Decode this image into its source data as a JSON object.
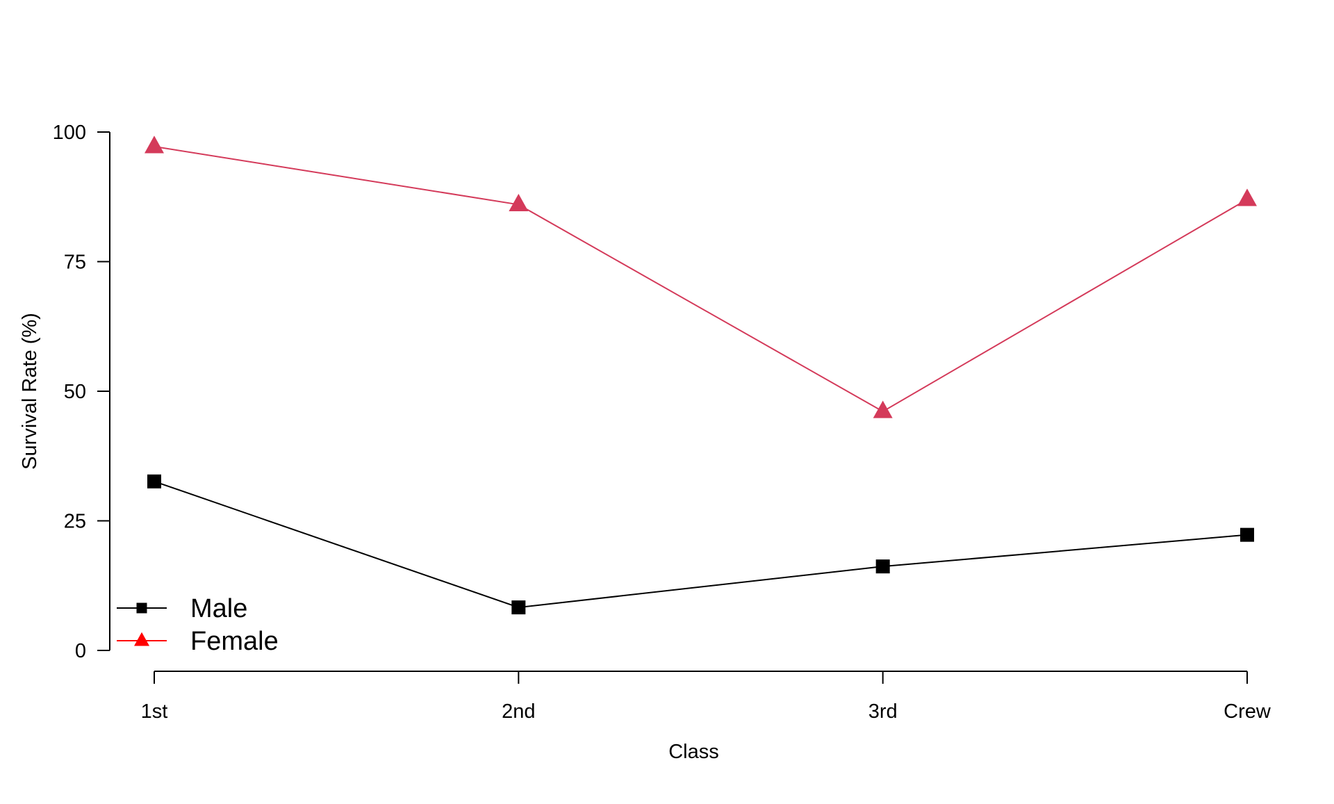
{
  "colors": {
    "male": "#000000",
    "female": "#d43a5a",
    "female_legend": "#ff0000",
    "axis": "#000000",
    "background": "#ffffff"
  },
  "chart_data": {
    "type": "line",
    "xlabel": "Class",
    "ylabel": "Survival Rate (%)",
    "categories": [
      "1st",
      "2nd",
      "3rd",
      "Crew"
    ],
    "ylim": [
      0,
      100
    ],
    "y_ticks": [
      0,
      25,
      50,
      75,
      100
    ],
    "grid": false,
    "legend": {
      "placement": "bottom-left",
      "entries": [
        "Male",
        "Female"
      ]
    },
    "series": [
      {
        "name": "Male",
        "marker": "square",
        "color": "#000000",
        "values": [
          32.6,
          8.3,
          16.2,
          22.3
        ]
      },
      {
        "name": "Female",
        "marker": "triangle",
        "color": "#d43a5a",
        "values": [
          97.2,
          86.0,
          46.1,
          87.0
        ]
      }
    ]
  }
}
